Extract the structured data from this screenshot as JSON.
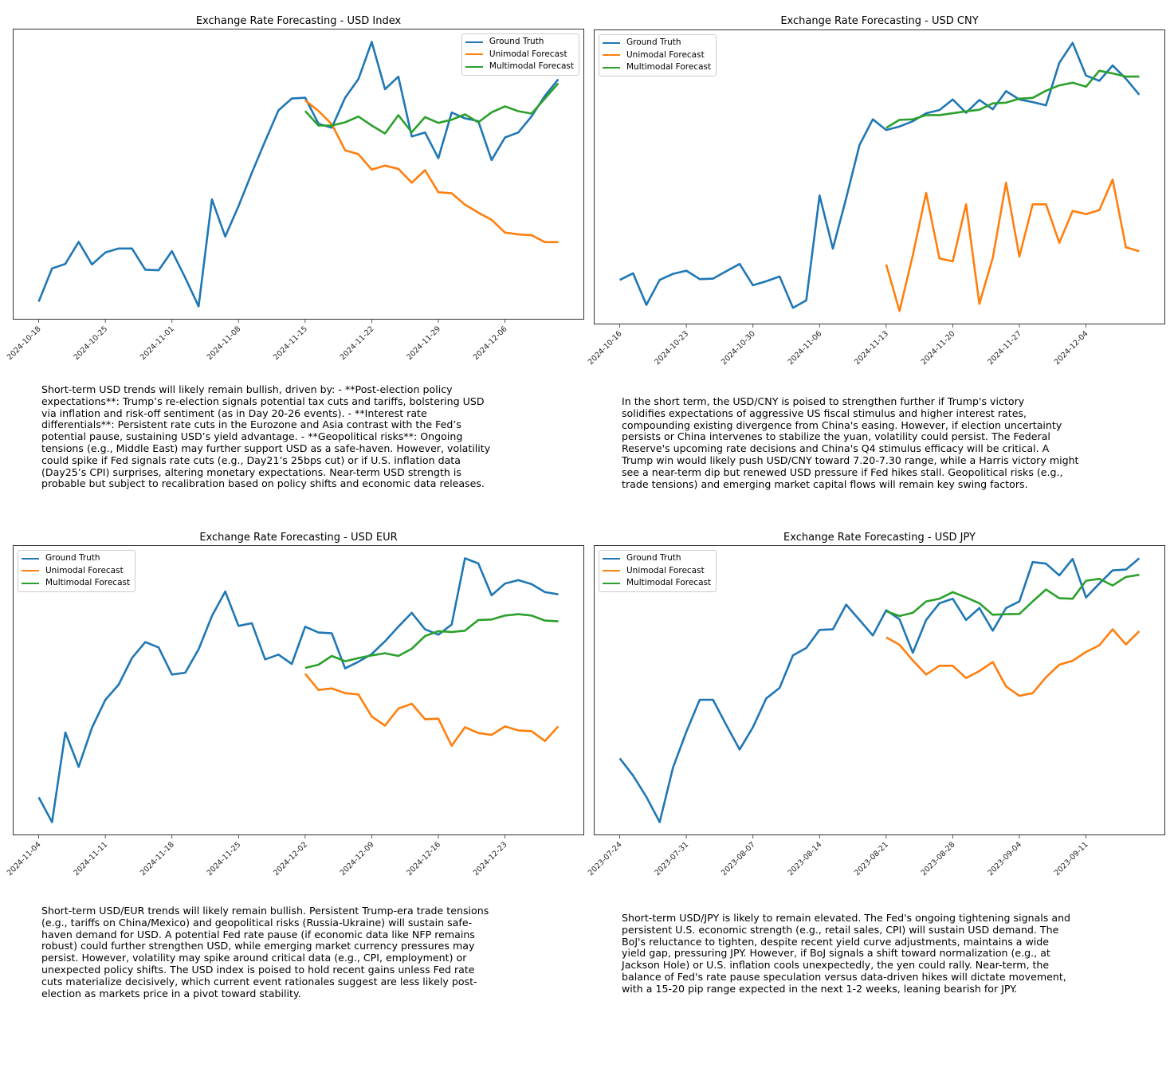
{
  "series_names": [
    "Ground Truth",
    "Unimodal Forecast",
    "Multimodal Forecast"
  ],
  "colors": {
    "ground_truth": "#1f77b4",
    "unimodal": "#ff7f0e",
    "multimodal": "#2ca02c"
  },
  "chart_data": [
    {
      "type": "line",
      "title": "Exchange Rate Forecasting - USD Index",
      "xlabel": "",
      "ylabel": "",
      "y_axis_ticks_shown": false,
      "legend": "top-right",
      "grid": false,
      "x_ticks": [
        {
          "index": 0,
          "label": "2024-10-18"
        },
        {
          "index": 5,
          "label": "2024-10-25"
        },
        {
          "index": 10,
          "label": "2024-11-01"
        },
        {
          "index": 15,
          "label": "2024-11-08"
        },
        {
          "index": 20,
          "label": "2024-11-15"
        },
        {
          "index": 25,
          "label": "2024-11-22"
        },
        {
          "index": 30,
          "label": "2024-11-29"
        },
        {
          "index": 35,
          "label": "2024-12-06"
        }
      ],
      "series": [
        {
          "name": "Ground Truth",
          "values": [
            6.5,
            19,
            20.7,
            29,
            20.5,
            25,
            26.5,
            26.5,
            18.5,
            18.3,
            25.5,
            15.5,
            4.7,
            45,
            31,
            42.5,
            55,
            67,
            78.5,
            83,
            83.3,
            73.5,
            72,
            83.3,
            90.3,
            104.3,
            86.5,
            91.2,
            68.7,
            70.2,
            60.5,
            77.7,
            75.5,
            74.5,
            59.8,
            68.3,
            70.2,
            76.3,
            84,
            90.2
          ]
        },
        {
          "name": "Unimodal Forecast",
          "values": [
            null,
            null,
            null,
            null,
            null,
            null,
            null,
            null,
            null,
            null,
            null,
            null,
            null,
            null,
            null,
            null,
            null,
            null,
            null,
            null,
            82.3,
            78.3,
            73.3,
            63.5,
            62,
            56.2,
            57.7,
            56.5,
            51.3,
            56,
            47.7,
            47.3,
            43,
            40,
            37.3,
            32.5,
            31.8,
            31.5,
            28.9,
            28.9
          ]
        },
        {
          "name": "Multimodal Forecast",
          "values": [
            null,
            null,
            null,
            null,
            null,
            null,
            null,
            null,
            null,
            null,
            null,
            null,
            null,
            null,
            null,
            null,
            null,
            null,
            null,
            null,
            78.3,
            72.8,
            72.8,
            74,
            76.2,
            72.8,
            69.8,
            76.7,
            70.3,
            76,
            73.8,
            75,
            77,
            74,
            77.8,
            80,
            78.2,
            77.3,
            83,
            88.7
          ]
        }
      ],
      "text_lines": [
        "Short-term USD trends will likely remain bullish, driven by: - **Post-election policy",
        "expectations**: Trump’s re-election signals potential tax cuts and tariffs, bolstering USD",
        "via inflation and risk-off sentiment (as in Day 20-26 events). - **Interest rate",
        "differentials**: Persistent rate cuts in the Eurozone and Asia contrast with the Fed’s",
        "potential pause, sustaining USD’s yield advantage. - **Geopolitical risks**: Ongoing",
        "tensions (e.g., Middle East) may further support USD as a safe-haven. However, volatility",
        "could spike if Fed signals rate cuts (e.g., Day21’s 25bps cut) or if U.S. inflation data",
        "(Day25’s CPI) surprises, altering monetary expectations. Near-term USD strength is",
        "probable but subject to recalibration based on policy shifts and economic data releases."
      ]
    },
    {
      "type": "line",
      "title": "Exchange Rate Forecasting - USD CNY",
      "xlabel": "",
      "ylabel": "",
      "y_axis_ticks_shown": false,
      "legend": "top-left",
      "grid": false,
      "x_ticks": [
        {
          "index": 0,
          "label": "2024-10-16"
        },
        {
          "index": 5,
          "label": "2024-10-23"
        },
        {
          "index": 10,
          "label": "2024-10-30"
        },
        {
          "index": 15,
          "label": "2024-11-06"
        },
        {
          "index": 20,
          "label": "2024-11-13"
        },
        {
          "index": 25,
          "label": "2024-11-20"
        },
        {
          "index": 30,
          "label": "2024-11-27"
        },
        {
          "index": 35,
          "label": "2024-12-04"
        }
      ],
      "series": [
        {
          "name": "Ground Truth",
          "values": [
            16.7,
            19.2,
            7.3,
            16.7,
            19,
            20.2,
            17,
            17.2,
            20,
            22.7,
            14.7,
            16.2,
            18,
            6.2,
            9,
            48.5,
            28.5,
            47.5,
            67.5,
            77.2,
            73.2,
            74.5,
            76.5,
            79.5,
            80.7,
            84.7,
            79.7,
            84.5,
            81,
            87.8,
            84.7,
            83.7,
            82.5,
            98.5,
            106,
            93.7,
            91.7,
            97.5,
            92.5,
            86.5
          ]
        },
        {
          "name": "Unimodal Forecast",
          "values": [
            null,
            null,
            null,
            null,
            null,
            null,
            null,
            null,
            null,
            null,
            null,
            null,
            null,
            null,
            null,
            null,
            null,
            null,
            null,
            null,
            22.5,
            5,
            26,
            49.5,
            24.8,
            23.7,
            45.2,
            7.7,
            25,
            53.3,
            25.5,
            45.2,
            45.2,
            30.7,
            42.7,
            41.5,
            43,
            54.5,
            29,
            27.5
          ]
        },
        {
          "name": "Multimodal Forecast",
          "values": [
            null,
            null,
            null,
            null,
            null,
            null,
            null,
            null,
            null,
            null,
            null,
            null,
            null,
            null,
            null,
            null,
            null,
            null,
            null,
            null,
            74,
            77,
            77.2,
            78.8,
            78.8,
            79.5,
            80.2,
            80.8,
            83.2,
            83.5,
            85,
            85.3,
            88,
            90,
            91,
            89.5,
            95.5,
            94.5,
            93.3,
            93.3
          ]
        }
      ],
      "text_lines": [
        "In the short term, the USD/CNY is poised to strengthen further if Trump's victory",
        "solidifies expectations of aggressive US fiscal stimulus and higher interest rates,",
        "compounding existing divergence from China's easing. However, if election uncertainty",
        "persists or China intervenes to stabilize the yuan, volatility could persist. The Federal",
        "Reserve's upcoming rate decisions and China's Q4 stimulus efficacy will be critical. A",
        "Trump win would likely push USD/CNY toward 7.20-7.30 range, while a Harris victory might",
        "see a near-term dip but renewed USD pressure if Fed hikes stall. Geopolitical risks (e.g.,",
        "trade tensions) and emerging market capital flows will remain key swing factors."
      ]
    },
    {
      "type": "line",
      "title": "Exchange Rate Forecasting - USD EUR",
      "xlabel": "",
      "ylabel": "",
      "y_axis_ticks_shown": false,
      "legend": "top-left",
      "grid": false,
      "x_ticks": [
        {
          "index": 0,
          "label": "2024-11-04"
        },
        {
          "index": 5,
          "label": "2024-11-11"
        },
        {
          "index": 10,
          "label": "2024-11-18"
        },
        {
          "index": 15,
          "label": "2024-11-25"
        },
        {
          "index": 20,
          "label": "2024-12-02"
        },
        {
          "index": 25,
          "label": "2024-12-09"
        },
        {
          "index": 30,
          "label": "2024-12-16"
        },
        {
          "index": 35,
          "label": "2024-12-23"
        }
      ],
      "series": [
        {
          "name": "Ground Truth",
          "values": [
            14,
            4.7,
            38.4,
            25.5,
            40.2,
            50.7,
            56.4,
            66.4,
            72.4,
            70.4,
            60.2,
            60.9,
            69.7,
            82.2,
            91.4,
            78.5,
            79.5,
            65.9,
            67.7,
            64.2,
            78.2,
            76,
            75.7,
            62.5,
            65,
            67.9,
            72.7,
            78.2,
            83.4,
            77.2,
            75.2,
            79,
            103.9,
            102,
            90,
            94.4,
            95.7,
            94.2,
            91.2,
            90.4
          ]
        },
        {
          "name": "Unimodal Forecast",
          "values": [
            null,
            null,
            null,
            null,
            null,
            null,
            null,
            null,
            null,
            null,
            null,
            null,
            null,
            null,
            null,
            null,
            null,
            null,
            null,
            null,
            60.5,
            54.4,
            55,
            53.2,
            52.7,
            44.4,
            41,
            47.4,
            49.2,
            43.4,
            43.6,
            33.4,
            40.4,
            38.2,
            37.5,
            40.7,
            39.2,
            38.9,
            35.2,
            40.7
          ]
        },
        {
          "name": "Multimodal Forecast",
          "values": [
            null,
            null,
            null,
            null,
            null,
            null,
            null,
            null,
            null,
            null,
            null,
            null,
            null,
            null,
            null,
            null,
            null,
            null,
            null,
            null,
            62.7,
            63.9,
            67.2,
            65.2,
            66.4,
            67.4,
            68.2,
            67.2,
            69.9,
            74.7,
            76.5,
            76.2,
            76.7,
            80.7,
            80.9,
            82.4,
            82.9,
            82.4,
            80.5,
            80.2
          ]
        }
      ],
      "text_lines": [
        "Short-term USD/EUR trends will likely remain bullish. Persistent Trump-era trade tensions",
        "(e.g., tariffs on China/Mexico) and geopolitical risks (Russia-Ukraine) will sustain safe-",
        "haven demand for USD. A potential Fed rate pause (if economic data like NFP remains",
        "robust) could further strengthen USD, while emerging market currency pressures may",
        "persist. However, volatility may spike around critical data (e.g., CPI, employment) or",
        "unexpected policy shifts. The USD index is poised to hold recent gains unless Fed rate",
        "cuts materialize decisively, which current event rationales suggest are less likely post-",
        "election as markets price in a pivot toward stability."
      ]
    },
    {
      "type": "line",
      "title": "Exchange Rate Forecasting - USD JPY",
      "xlabel": "",
      "ylabel": "",
      "y_axis_ticks_shown": false,
      "legend": "top-left",
      "grid": false,
      "x_ticks": [
        {
          "index": 0,
          "label": "2023-07-24"
        },
        {
          "index": 5,
          "label": "2023-07-31"
        },
        {
          "index": 10,
          "label": "2023-08-07"
        },
        {
          "index": 15,
          "label": "2023-08-14"
        },
        {
          "index": 20,
          "label": "2023-08-21"
        },
        {
          "index": 25,
          "label": "2023-08-28"
        },
        {
          "index": 30,
          "label": "2023-09-04"
        },
        {
          "index": 35,
          "label": "2023-09-11"
        }
      ],
      "series": [
        {
          "name": "Ground Truth",
          "values": [
            28.7,
            22.2,
            14.2,
            4.7,
            25.2,
            38.7,
            50.7,
            50.7,
            41.2,
            32,
            40.4,
            51.2,
            55.2,
            67.4,
            70.2,
            77,
            77.2,
            86.5,
            80.7,
            74.9,
            84.4,
            81,
            68.4,
            80.7,
            87,
            88.7,
            80.7,
            85.2,
            76.7,
            85.2,
            87.7,
            102.5,
            101.9,
            97.5,
            103.7,
            89.2,
            94.4,
            99.4,
            99.7,
            103.9
          ]
        },
        {
          "name": "Unimodal Forecast",
          "values": [
            null,
            null,
            null,
            null,
            null,
            null,
            null,
            null,
            null,
            null,
            null,
            null,
            null,
            null,
            null,
            null,
            null,
            null,
            null,
            null,
            74.2,
            71.4,
            65.5,
            60.2,
            63.5,
            63.5,
            58.9,
            61.5,
            64.9,
            55.7,
            52.2,
            53.2,
            59.2,
            63.9,
            65.4,
            68.7,
            71.2,
            77.2,
            71.5,
            76.5
          ]
        },
        {
          "name": "Multimodal Forecast",
          "values": [
            null,
            null,
            null,
            null,
            null,
            null,
            null,
            null,
            null,
            null,
            null,
            null,
            null,
            null,
            null,
            null,
            null,
            null,
            null,
            null,
            84,
            82.2,
            83.4,
            87.7,
            88.7,
            91.2,
            89.2,
            87,
            82.7,
            82.9,
            83,
            87.7,
            92.2,
            88.9,
            88.7,
            95.5,
            96.2,
            93.7,
            96.9,
            97.7
          ]
        }
      ],
      "text_lines": [
        "Short-term USD/JPY is likely to remain elevated. The Fed's ongoing tightening signals and",
        "persistent U.S. economic strength (e.g., retail sales, CPI) will sustain USD demand. The",
        "BoJ's reluctance to tighten, despite recent yield curve adjustments, maintains a wide",
        "yield gap, pressuring JPY. However, if BoJ signals a shift toward normalization (e.g., at",
        "Jackson Hole) or U.S. inflation cools unexpectedly, the yen could rally. Near-term, the",
        "balance of Fed's rate pause speculation versus data-driven hikes will dictate movement,",
        "with a 15-20 pip range expected in the next 1-2 weeks, leaning bearish for JPY."
      ]
    }
  ]
}
